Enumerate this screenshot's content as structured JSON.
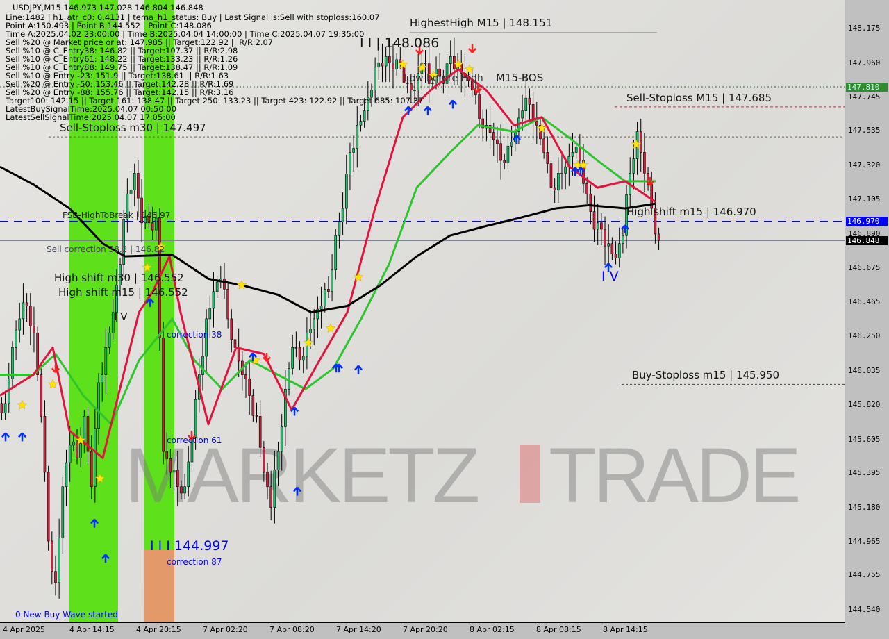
{
  "header": {
    "symbol": "USDJPY,M15",
    "ohlc": "146.973 147.028 146.804 146.848",
    "lines": [
      "Line:1482 | h1_atr_c0: 0.4131 | tema_h1_status: Buy | Last Signal is:Sell with stoploss:160.07",
      "Point A:150.493 | Point B:144.552 | Point C:148.086",
      "Time A:2025.04.02 23:00:00 | Time B:2025.04.04 14:00:00 | Time C:2025.04.07 19:35:00",
      "Sell %20 @ Market price or at: 147.985 || Target:122.92 || R/R:2.07",
      "Sell %10 @ C_Entry38: 146.82 || Target:107.37 || R/R:2.98",
      "Sell %10 @ C_Entry61: 148.22 || Target:133.23 || R/R:1.26",
      "Sell %10 @ C_Entry88: 149.75 || Target:138.47 || R/R:1.09",
      "Sell %10 @ Entry -23: 151.9 || Target:138.61 || R/R:1.63",
      "Sell %20 @ Entry -50: 153.46 || Target:142.28 || R/R:1.69",
      "Sell %20 @ Entry -88: 155.76 || Target:142.15 || R/R:3.16",
      "Target100: 142.15 || Target 161: 138.47 || Target 250: 133.23 || Target 423: 122.92 || Target 685: 107.37",
      "LatestBuySignalTime:2025.04.07 00:50:00",
      "LatestSellSignalTime:2025.04.07 17:05:00"
    ]
  },
  "annotations": {
    "highest_high": "HighestHigh   M15 | 148.151",
    "wave_c": "I I | 148.086",
    "low_before_high": "Low before High",
    "m15_bos": "M15-BOS",
    "sell_sl_m15": "Sell-Stoploss M15 | 147.685",
    "sell_sl_m30": "Sell-Stoploss m30 | 147.497",
    "fsb": "FSB-HighToBreak | 146.97",
    "sell_corr": "Sell correction 38.2 | 146.82",
    "high_shift_m30": "High shift m30 | 146.552",
    "high_shift_m15_left": "High shift m15 | 146.552",
    "wave_iv_left": "I V",
    "corr38": "correction 38",
    "corr61": "correction 61",
    "corr87": "correction 87",
    "wave_b": "I I I 144.997",
    "new_buy_wave": "0 New Buy Wave started",
    "high_shift_m15": "High shift m15 | 146.970",
    "wave_iv": "I V",
    "buy_sl_m15": "Buy-Stoploss m15 | 145.950",
    "watermark_left": "MARKETZ",
    "watermark_right": "TRADE"
  },
  "price_tags": {
    "green": "147.810",
    "blue": "146.970",
    "black": "146.848"
  },
  "colors": {
    "bull": "#1fbf6a",
    "bear": "#d0203c",
    "ma_slow": "#000000",
    "ma_red": "#e0143c",
    "ma_green": "#2ec42e",
    "zone_green": "#5ee01a",
    "zone_orange": "#e4996a",
    "level_blue": "#0000ff"
  },
  "chart_data": {
    "type": "candlestick",
    "symbol": "USDJPY",
    "timeframe": "M15",
    "ylim": [
      144.44,
      148.32
    ],
    "y_ticks": [
      "148.175",
      "147.960",
      "147.745",
      "147.535",
      "147.320",
      "147.105",
      "146.890",
      "146.675",
      "146.465",
      "146.250",
      "146.035",
      "145.820",
      "145.605",
      "145.395",
      "145.180",
      "144.965",
      "144.755",
      "144.540"
    ],
    "x_ticks": [
      "4 Apr 2025",
      "4 Apr 14:15",
      "4 Apr 20:15",
      "7 Apr 02:20",
      "7 Apr 08:20",
      "7 Apr 14:20",
      "7 Apr 20:20",
      "8 Apr 02:15",
      "8 Apr 08:15",
      "8 Apr 14:15"
    ],
    "closes": [
      145.83,
      146.18,
      146.36,
      146.44,
      146.27,
      145.75,
      144.97,
      144.71,
      145.31,
      145.57,
      145.49,
      145.75,
      145.31,
      145.96,
      146.18,
      146.4,
      146.7,
      147.14,
      147.27,
      146.96,
      146.96,
      146.99,
      145.53,
      145.4,
      145.31,
      145.31,
      145.62,
      146.01,
      146.36,
      146.53,
      146.61,
      146.36,
      146.18,
      146.01,
      145.88,
      145.75,
      145.4,
      145.18,
      145.53,
      145.92,
      146.18,
      146.1,
      146.27,
      146.36,
      146.44,
      146.53,
      146.88,
      147.05,
      147.4,
      147.57,
      147.66,
      147.79,
      147.96,
      148.0,
      147.92,
      147.96,
      147.83,
      147.79,
      147.96,
      147.83,
      147.92,
      147.83,
      148.0,
      147.96,
      147.87,
      147.79,
      147.61,
      147.57,
      147.48,
      147.35,
      147.44,
      147.53,
      147.66,
      147.7,
      147.57,
      147.4,
      147.18,
      147.27,
      147.31,
      147.4,
      147.35,
      147.14,
      146.92,
      146.92,
      146.83,
      146.74,
      146.88,
      147.27,
      147.53,
      147.27,
      147.05,
      146.85
    ],
    "ma_slow": [
      [
        0,
        147.31
      ],
      [
        12,
        147.2
      ],
      [
        25,
        147.05
      ],
      [
        37,
        146.83
      ],
      [
        45,
        146.75
      ],
      [
        62,
        146.76
      ],
      [
        75,
        146.61
      ],
      [
        87,
        146.57
      ],
      [
        100,
        146.51
      ],
      [
        112,
        146.4
      ],
      [
        125,
        146.44
      ],
      [
        137,
        146.57
      ],
      [
        150,
        146.75
      ],
      [
        162,
        146.88
      ],
      [
        175,
        146.94
      ],
      [
        187,
        146.99
      ],
      [
        200,
        147.05
      ],
      [
        212,
        147.07
      ],
      [
        225,
        147.05
      ],
      [
        236,
        147.08
      ]
    ],
    "ma_red": [
      [
        0,
        145.88
      ],
      [
        12,
        146.01
      ],
      [
        19,
        146.18
      ],
      [
        25,
        145.66
      ],
      [
        37,
        145.49
      ],
      [
        50,
        146.4
      ],
      [
        55,
        146.53
      ],
      [
        61,
        146.75
      ],
      [
        65,
        146.4
      ],
      [
        75,
        145.7
      ],
      [
        85,
        146.18
      ],
      [
        95,
        146.14
      ],
      [
        105,
        145.79
      ],
      [
        115,
        146.1
      ],
      [
        125,
        146.4
      ],
      [
        135,
        147.05
      ],
      [
        145,
        147.62
      ],
      [
        155,
        147.79
      ],
      [
        165,
        147.92
      ],
      [
        175,
        147.79
      ],
      [
        185,
        147.57
      ],
      [
        195,
        147.62
      ],
      [
        205,
        147.31
      ],
      [
        215,
        147.18
      ],
      [
        225,
        147.22
      ],
      [
        236,
        147.09
      ]
    ],
    "ma_green": [
      [
        0,
        146.01
      ],
      [
        12,
        146.01
      ],
      [
        20,
        146.14
      ],
      [
        30,
        145.88
      ],
      [
        40,
        145.7
      ],
      [
        50,
        146.1
      ],
      [
        62,
        146.36
      ],
      [
        70,
        146.1
      ],
      [
        80,
        145.92
      ],
      [
        90,
        146.1
      ],
      [
        100,
        146.01
      ],
      [
        110,
        145.92
      ],
      [
        120,
        146.05
      ],
      [
        130,
        146.36
      ],
      [
        140,
        146.7
      ],
      [
        150,
        147.18
      ],
      [
        162,
        147.4
      ],
      [
        172,
        147.57
      ],
      [
        185,
        147.53
      ],
      [
        195,
        147.62
      ],
      [
        205,
        147.49
      ],
      [
        215,
        147.35
      ],
      [
        225,
        147.22
      ],
      [
        236,
        147.22
      ]
    ],
    "levels": [
      {
        "name": "fsb-high-to-break",
        "price": 146.97
      },
      {
        "name": "last-price",
        "price": 146.848
      },
      {
        "name": "sell-stoploss-m30",
        "price": 147.497
      },
      {
        "name": "sell-stoploss-m15",
        "price": 147.685
      },
      {
        "name": "buy-stoploss-m15",
        "price": 145.95
      },
      {
        "name": "highest-high-m15",
        "price": 148.151
      },
      {
        "name": "m15-bos",
        "price": 147.81
      }
    ],
    "buy_arrows": [
      [
        2,
        145.62
      ],
      [
        8,
        145.62
      ],
      [
        34,
        145.08
      ],
      [
        38,
        144.86
      ],
      [
        54,
        146.46
      ],
      [
        91,
        146.12
      ],
      [
        106,
        145.78
      ],
      [
        107,
        145.28
      ],
      [
        129,
        146.04
      ],
      [
        121,
        146.05
      ],
      [
        122,
        146.05
      ],
      [
        147,
        147.66
      ],
      [
        154,
        147.66
      ],
      [
        163,
        147.7
      ],
      [
        186,
        147.48
      ],
      [
        207,
        147.28
      ],
      [
        209,
        147.28
      ],
      [
        219,
        146.68
      ],
      [
        225,
        146.92
      ]
    ],
    "sell_arrows": [
      [
        20,
        146.05
      ],
      [
        69,
        145.63
      ],
      [
        96,
        146.12
      ],
      [
        151,
        148.04
      ],
      [
        170,
        148.05
      ],
      [
        172,
        147.8
      ],
      [
        234,
        147.22
      ]
    ],
    "stars": [
      [
        8,
        145.82
      ],
      [
        19,
        145.95
      ],
      [
        29,
        145.6
      ],
      [
        36,
        145.36
      ],
      [
        53,
        146.68
      ],
      [
        58,
        146.81
      ],
      [
        87,
        146.57
      ],
      [
        92,
        146.1
      ],
      [
        111,
        146.21
      ],
      [
        119,
        146.3
      ],
      [
        129,
        146.62
      ],
      [
        145,
        147.95
      ],
      [
        152,
        147.93
      ],
      [
        156,
        147.88
      ],
      [
        165,
        147.95
      ],
      [
        169,
        147.92
      ],
      [
        195,
        147.55
      ],
      [
        208,
        147.32
      ],
      [
        210,
        147.32
      ],
      [
        229,
        147.45
      ]
    ]
  }
}
